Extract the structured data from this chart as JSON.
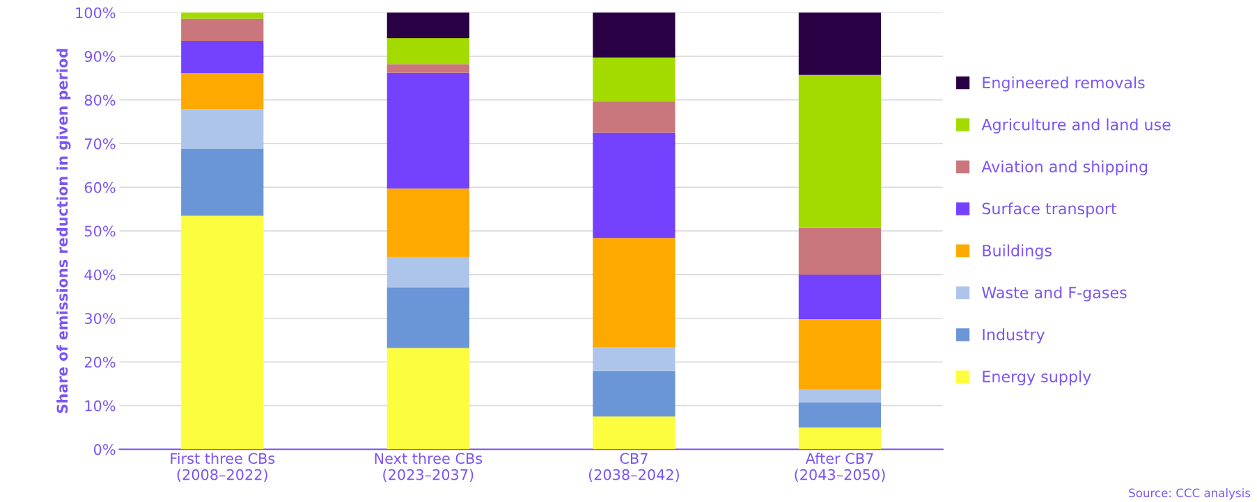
{
  "chart_data": {
    "type": "bar",
    "stacked": true,
    "ylabel": "Share of emissions reduction in given period",
    "categories": [
      "First three CBs\n(2008–2022)",
      "Next three CBs\n(2023–2037)",
      "CB7\n(2038–2042)",
      "After CB7\n(2043–2050)"
    ],
    "series": [
      {
        "name": "Energy supply",
        "color": "#fdfd40",
        "values": [
          53.5,
          23.2,
          7.5,
          5.0
        ]
      },
      {
        "name": "Industry",
        "color": "#6a95d7",
        "values": [
          15.4,
          13.9,
          10.4,
          5.7
        ]
      },
      {
        "name": "Waste and F-gases",
        "color": "#adc5ea",
        "values": [
          8.9,
          6.9,
          5.4,
          3.0
        ]
      },
      {
        "name": "Buildings",
        "color": "#fda900",
        "values": [
          8.3,
          15.7,
          25.1,
          16.1
        ]
      },
      {
        "name": "Surface transport",
        "color": "#7442ff",
        "values": [
          7.4,
          26.5,
          24.1,
          10.2
        ]
      },
      {
        "name": "Aviation and shipping",
        "color": "#c9777c",
        "values": [
          5.1,
          2.0,
          7.2,
          10.7
        ]
      },
      {
        "name": "Agriculture and land use",
        "color": "#a3da00",
        "values": [
          1.4,
          5.9,
          10.0,
          35.0
        ]
      },
      {
        "name": "Engineered removals",
        "color": "#2a0044",
        "values": [
          0,
          5.9,
          10.3,
          14.3
        ]
      }
    ],
    "ylim": [
      0,
      100
    ],
    "yticks": [
      {
        "value": 0,
        "label": "0%"
      },
      {
        "value": 10,
        "label": "10%"
      },
      {
        "value": 20,
        "label": "20%"
      },
      {
        "value": 30,
        "label": "30%"
      },
      {
        "value": 40,
        "label": "40%"
      },
      {
        "value": 50,
        "label": "50%"
      },
      {
        "value": 60,
        "label": "60%"
      },
      {
        "value": 70,
        "label": "70%"
      },
      {
        "value": 80,
        "label": "80%"
      },
      {
        "value": 90,
        "label": "90%"
      },
      {
        "value": 100,
        "label": "100%"
      }
    ],
    "grid": "y",
    "legend": "right",
    "annotations": [
      "Source: CCC analysis"
    ]
  }
}
